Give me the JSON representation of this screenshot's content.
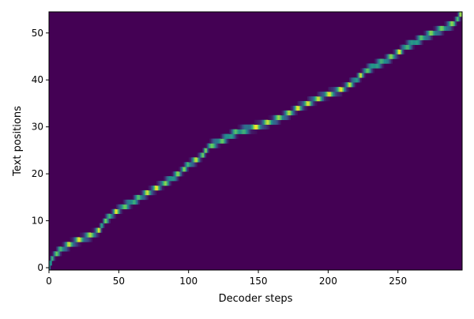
{
  "chart_data": {
    "type": "heatmap",
    "title": "",
    "xlabel": "Decoder steps",
    "ylabel": "Text positions",
    "xlim": [
      0,
      296
    ],
    "ylim": [
      -0.5,
      54.5
    ],
    "x_ticks": [
      0,
      50,
      100,
      150,
      200,
      250
    ],
    "y_ticks": [
      0,
      10,
      20,
      30,
      40,
      50
    ],
    "colormap": "viridis",
    "colormap_stops": [
      "#440154",
      "#3b528b",
      "#21918c",
      "#5ec962",
      "#fde725"
    ],
    "grid": false,
    "alignment_path": [
      [
        0,
        0
      ],
      [
        2,
        2
      ],
      [
        5,
        3
      ],
      [
        9,
        4
      ],
      [
        15,
        5
      ],
      [
        22,
        6
      ],
      [
        31,
        7
      ],
      [
        36,
        8
      ],
      [
        40,
        10
      ],
      [
        44,
        11
      ],
      [
        48,
        12
      ],
      [
        53,
        13
      ],
      [
        60,
        14
      ],
      [
        65,
        15
      ],
      [
        71,
        16
      ],
      [
        77,
        17
      ],
      [
        88,
        19
      ],
      [
        93,
        20
      ],
      [
        100,
        22
      ],
      [
        106,
        23
      ],
      [
        110,
        24
      ],
      [
        115,
        26
      ],
      [
        123,
        27
      ],
      [
        129,
        28
      ],
      [
        135,
        29
      ],
      [
        148,
        30
      ],
      [
        158,
        31
      ],
      [
        166,
        32
      ],
      [
        173,
        33
      ],
      [
        178,
        34
      ],
      [
        185,
        35
      ],
      [
        192,
        36
      ],
      [
        200,
        37
      ],
      [
        210,
        38
      ],
      [
        220,
        40
      ],
      [
        227,
        42
      ],
      [
        233,
        43
      ],
      [
        240,
        44
      ],
      [
        246,
        45
      ],
      [
        251,
        46
      ],
      [
        255,
        47
      ],
      [
        262,
        48
      ],
      [
        268,
        49
      ],
      [
        275,
        50
      ],
      [
        283,
        51
      ],
      [
        290,
        52
      ],
      [
        295,
        54
      ]
    ]
  }
}
